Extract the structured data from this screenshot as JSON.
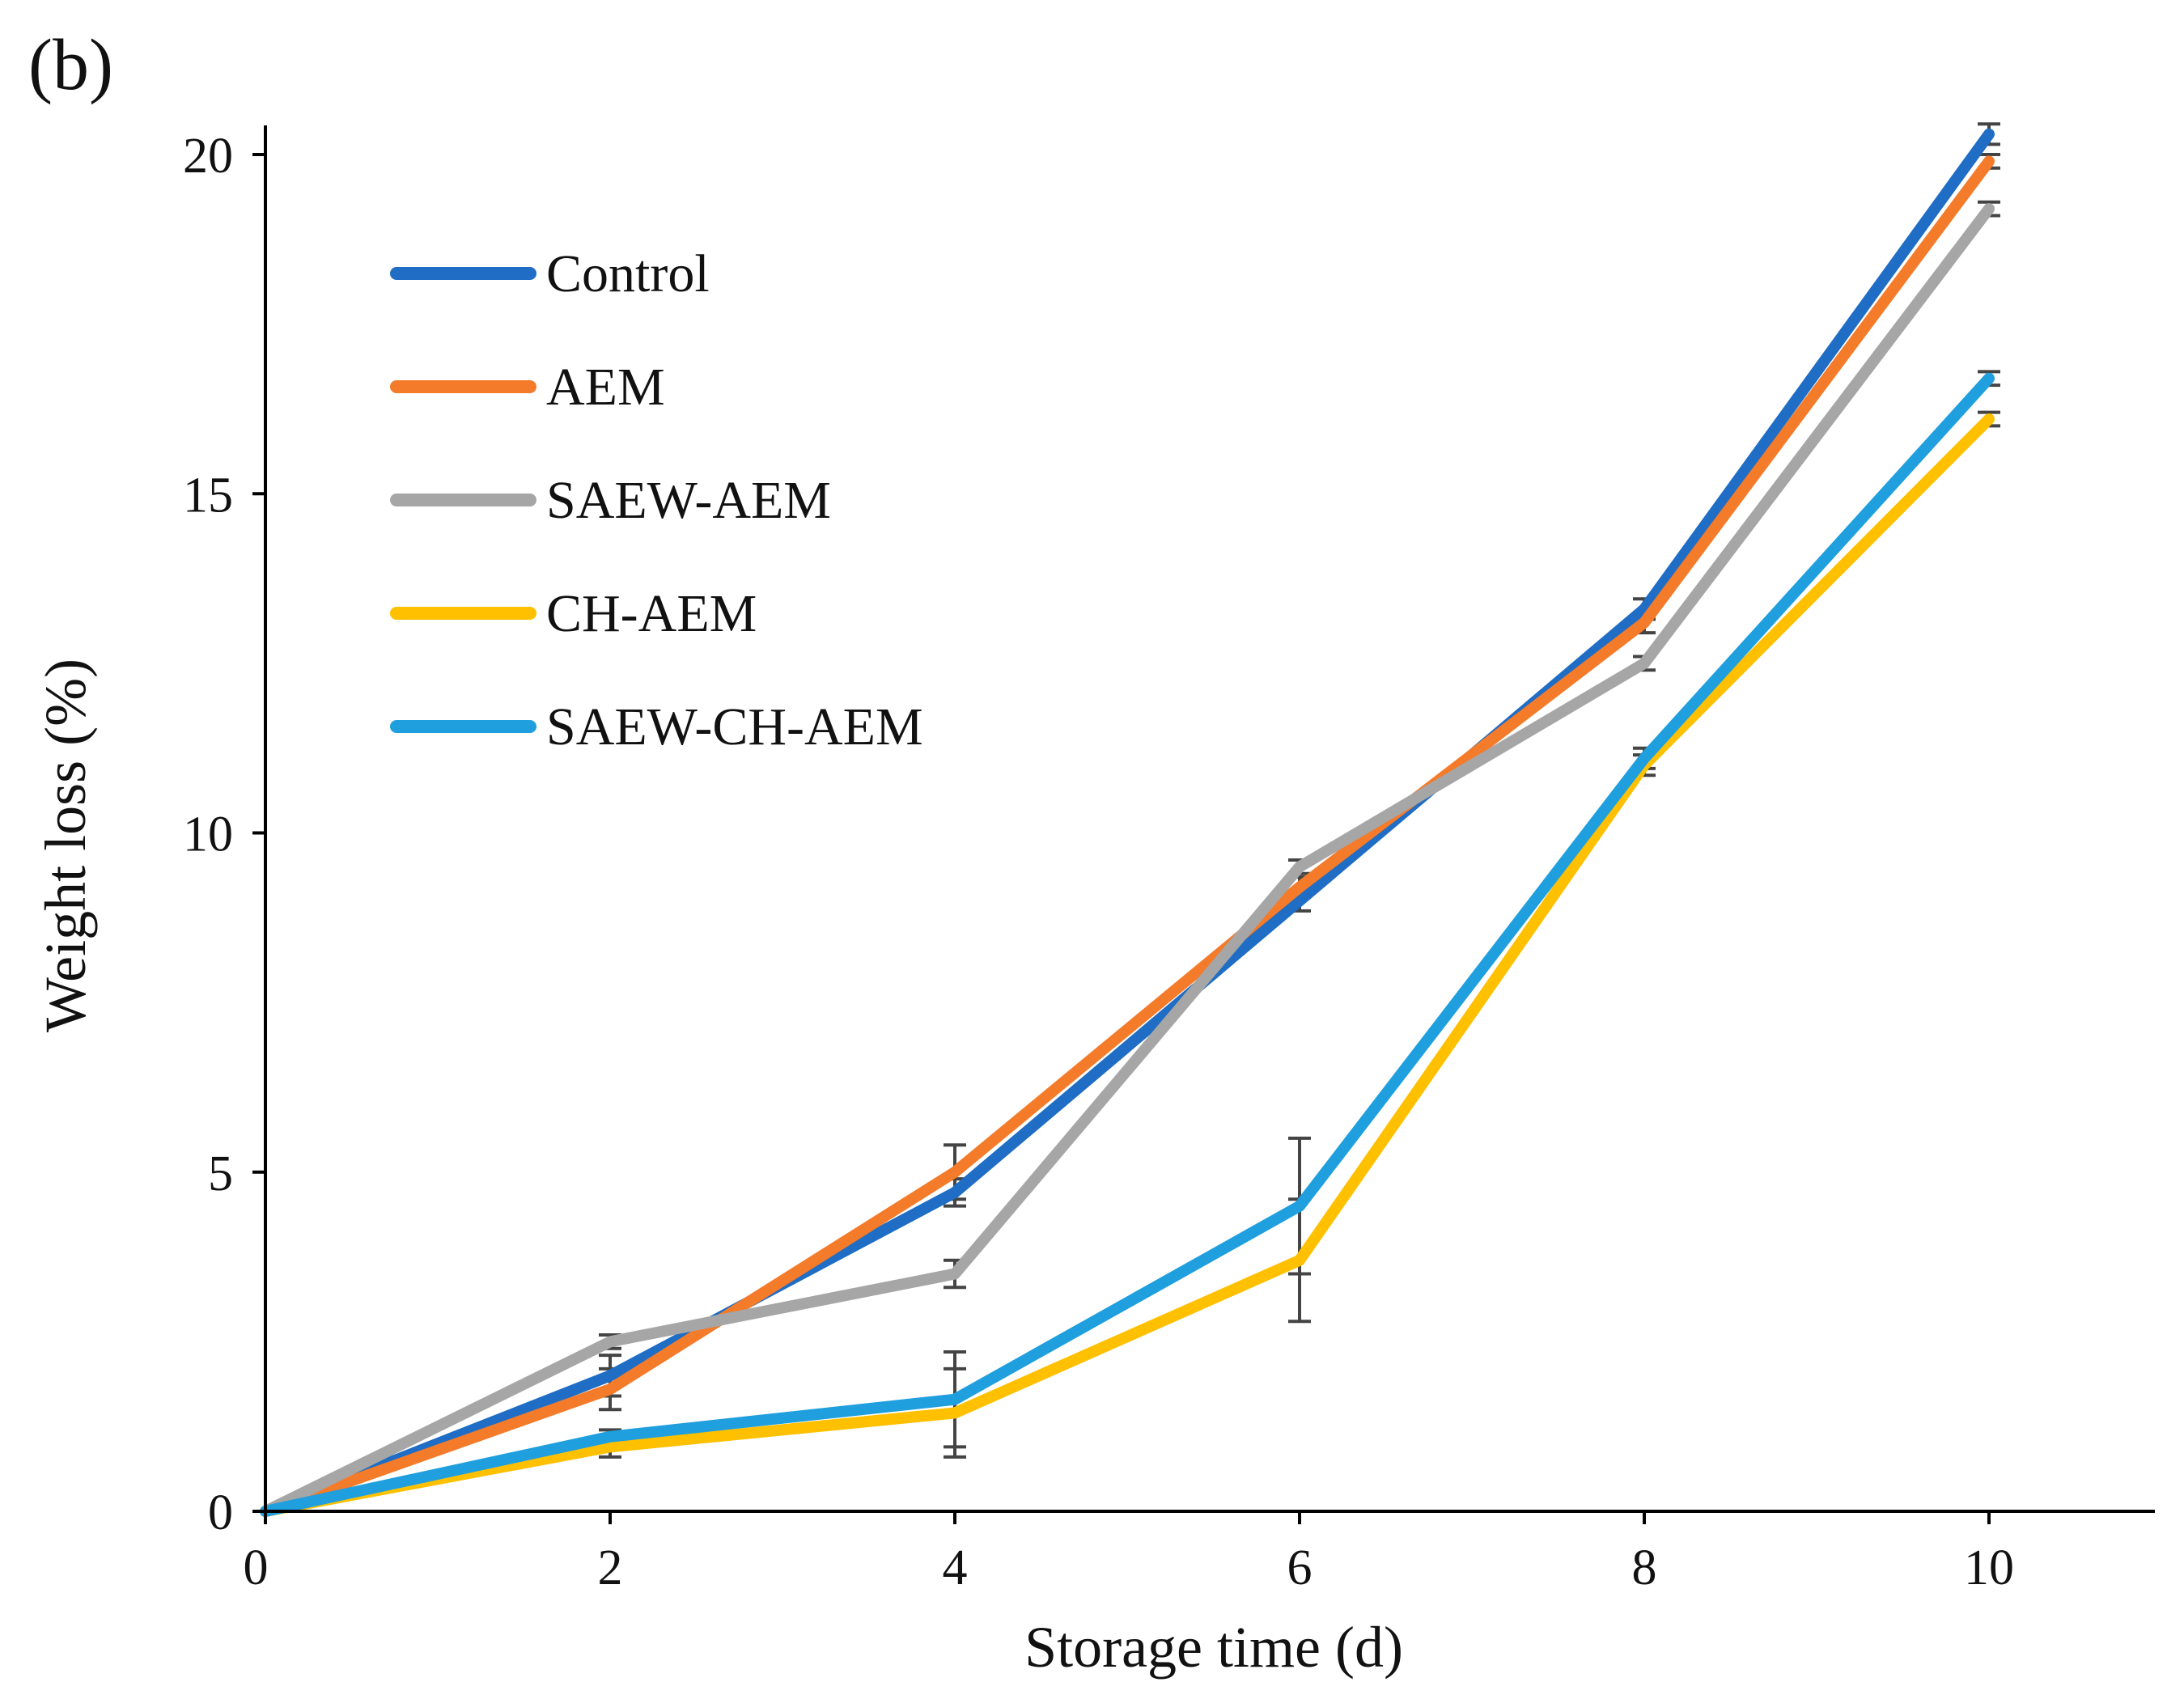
{
  "panel_label": "(b)",
  "chart_data": {
    "type": "line",
    "title": "",
    "xlabel": "Storage time (d)",
    "ylabel": "Weight loss (%)",
    "x": [
      0,
      2,
      4,
      6,
      8,
      10
    ],
    "x_ticks": [
      0,
      2,
      4,
      6,
      8,
      10
    ],
    "y_ticks": [
      0,
      5,
      10,
      15,
      20
    ],
    "xlim": [
      0,
      11
    ],
    "ylim": [
      0,
      20.5
    ],
    "grid": false,
    "legend_position": "top-left",
    "series": [
      {
        "name": "Control",
        "color": "#1F6DC4",
        "values": [
          0,
          2.0,
          4.7,
          9.0,
          13.3,
          20.3
        ],
        "errors": [
          0,
          0.3,
          0.2,
          0.15,
          0.15,
          0.15
        ]
      },
      {
        "name": "AEM",
        "color": "#F47B2A",
        "values": [
          0,
          1.8,
          5.0,
          9.2,
          13.1,
          19.9
        ],
        "errors": [
          0,
          0.3,
          0.4,
          0.15,
          0.15,
          0.1
        ]
      },
      {
        "name": "SAEW-AEM",
        "color": "#A6A6A6",
        "values": [
          0,
          2.5,
          3.5,
          9.5,
          12.5,
          19.2
        ],
        "errors": [
          0,
          0.1,
          0.2,
          0.1,
          0.1,
          0.1
        ]
      },
      {
        "name": "CH-AEM",
        "color": "#FFC000",
        "values": [
          0,
          0.95,
          1.45,
          3.7,
          11.0,
          16.1
        ],
        "errors": [
          0,
          0.15,
          0.65,
          0.9,
          0.15,
          0.1
        ]
      },
      {
        "name": "SAEW-CH-AEM",
        "color": "#1F9FDE",
        "values": [
          0,
          1.1,
          1.65,
          4.5,
          11.1,
          16.7
        ],
        "errors": [
          0,
          0.1,
          0.7,
          1.0,
          0.15,
          0.1
        ]
      }
    ]
  }
}
